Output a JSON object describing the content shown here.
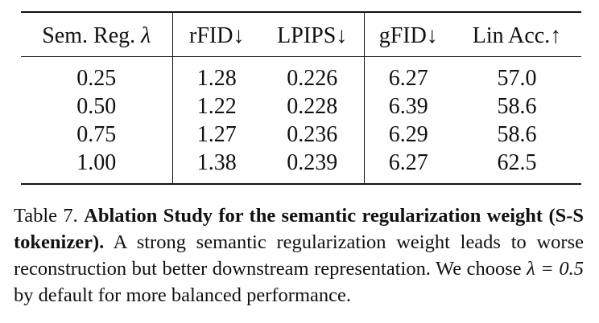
{
  "table": {
    "headers": {
      "col1": "Sem. Reg.",
      "col1_symbol": "λ",
      "col2": "rFID↓",
      "col3": "LPIPS↓",
      "col4": "gFID↓",
      "col5": "Lin Acc.↑"
    },
    "rows": [
      {
        "lambda": "0.25",
        "rfid": "1.28",
        "lpips": "0.226",
        "gfid": "6.27",
        "lin_acc": "57.0"
      },
      {
        "lambda": "0.50",
        "rfid": "1.22",
        "lpips": "0.228",
        "gfid": "6.39",
        "lin_acc": "58.6"
      },
      {
        "lambda": "0.75",
        "rfid": "1.27",
        "lpips": "0.236",
        "gfid": "6.29",
        "lin_acc": "58.6"
      },
      {
        "lambda": "1.00",
        "rfid": "1.38",
        "lpips": "0.239",
        "gfid": "6.27",
        "lin_acc": "62.5"
      }
    ]
  },
  "caption": {
    "label": "Table 7.",
    "bold_title": "Ablation Study for the semantic regularization weight (S-S tokenizer).",
    "body_before_math": "A strong semantic regularization weight leads to worse reconstruction but better downstream representation. We choose",
    "math": "λ = 0.5",
    "body_after_math": "by default for more balanced performance."
  }
}
